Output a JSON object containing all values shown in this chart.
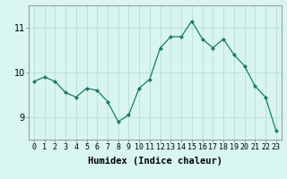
{
  "x": [
    0,
    1,
    2,
    3,
    4,
    5,
    6,
    7,
    8,
    9,
    10,
    11,
    12,
    13,
    14,
    15,
    16,
    17,
    18,
    19,
    20,
    21,
    22,
    23
  ],
  "y": [
    9.8,
    9.9,
    9.8,
    9.55,
    9.45,
    9.65,
    9.6,
    9.35,
    8.9,
    9.05,
    9.65,
    9.85,
    10.55,
    10.8,
    10.8,
    11.15,
    10.75,
    10.55,
    10.75,
    10.4,
    10.15,
    9.7,
    9.45,
    8.7
  ],
  "line_color": "#1a7a6e",
  "marker": "D",
  "marker_size": 2.0,
  "bg_color": "#d8f5f0",
  "grid_color": "#b8ddd8",
  "xlabel": "Humidex (Indice chaleur)",
  "ylim": [
    8.5,
    11.5
  ],
  "yticks": [
    9,
    10,
    11
  ],
  "xticks": [
    0,
    1,
    2,
    3,
    4,
    5,
    6,
    7,
    8,
    9,
    10,
    11,
    12,
    13,
    14,
    15,
    16,
    17,
    18,
    19,
    20,
    21,
    22,
    23
  ],
  "tick_fontsize": 6.0,
  "xlabel_fontsize": 7.5,
  "ytick_fontsize": 7.0
}
